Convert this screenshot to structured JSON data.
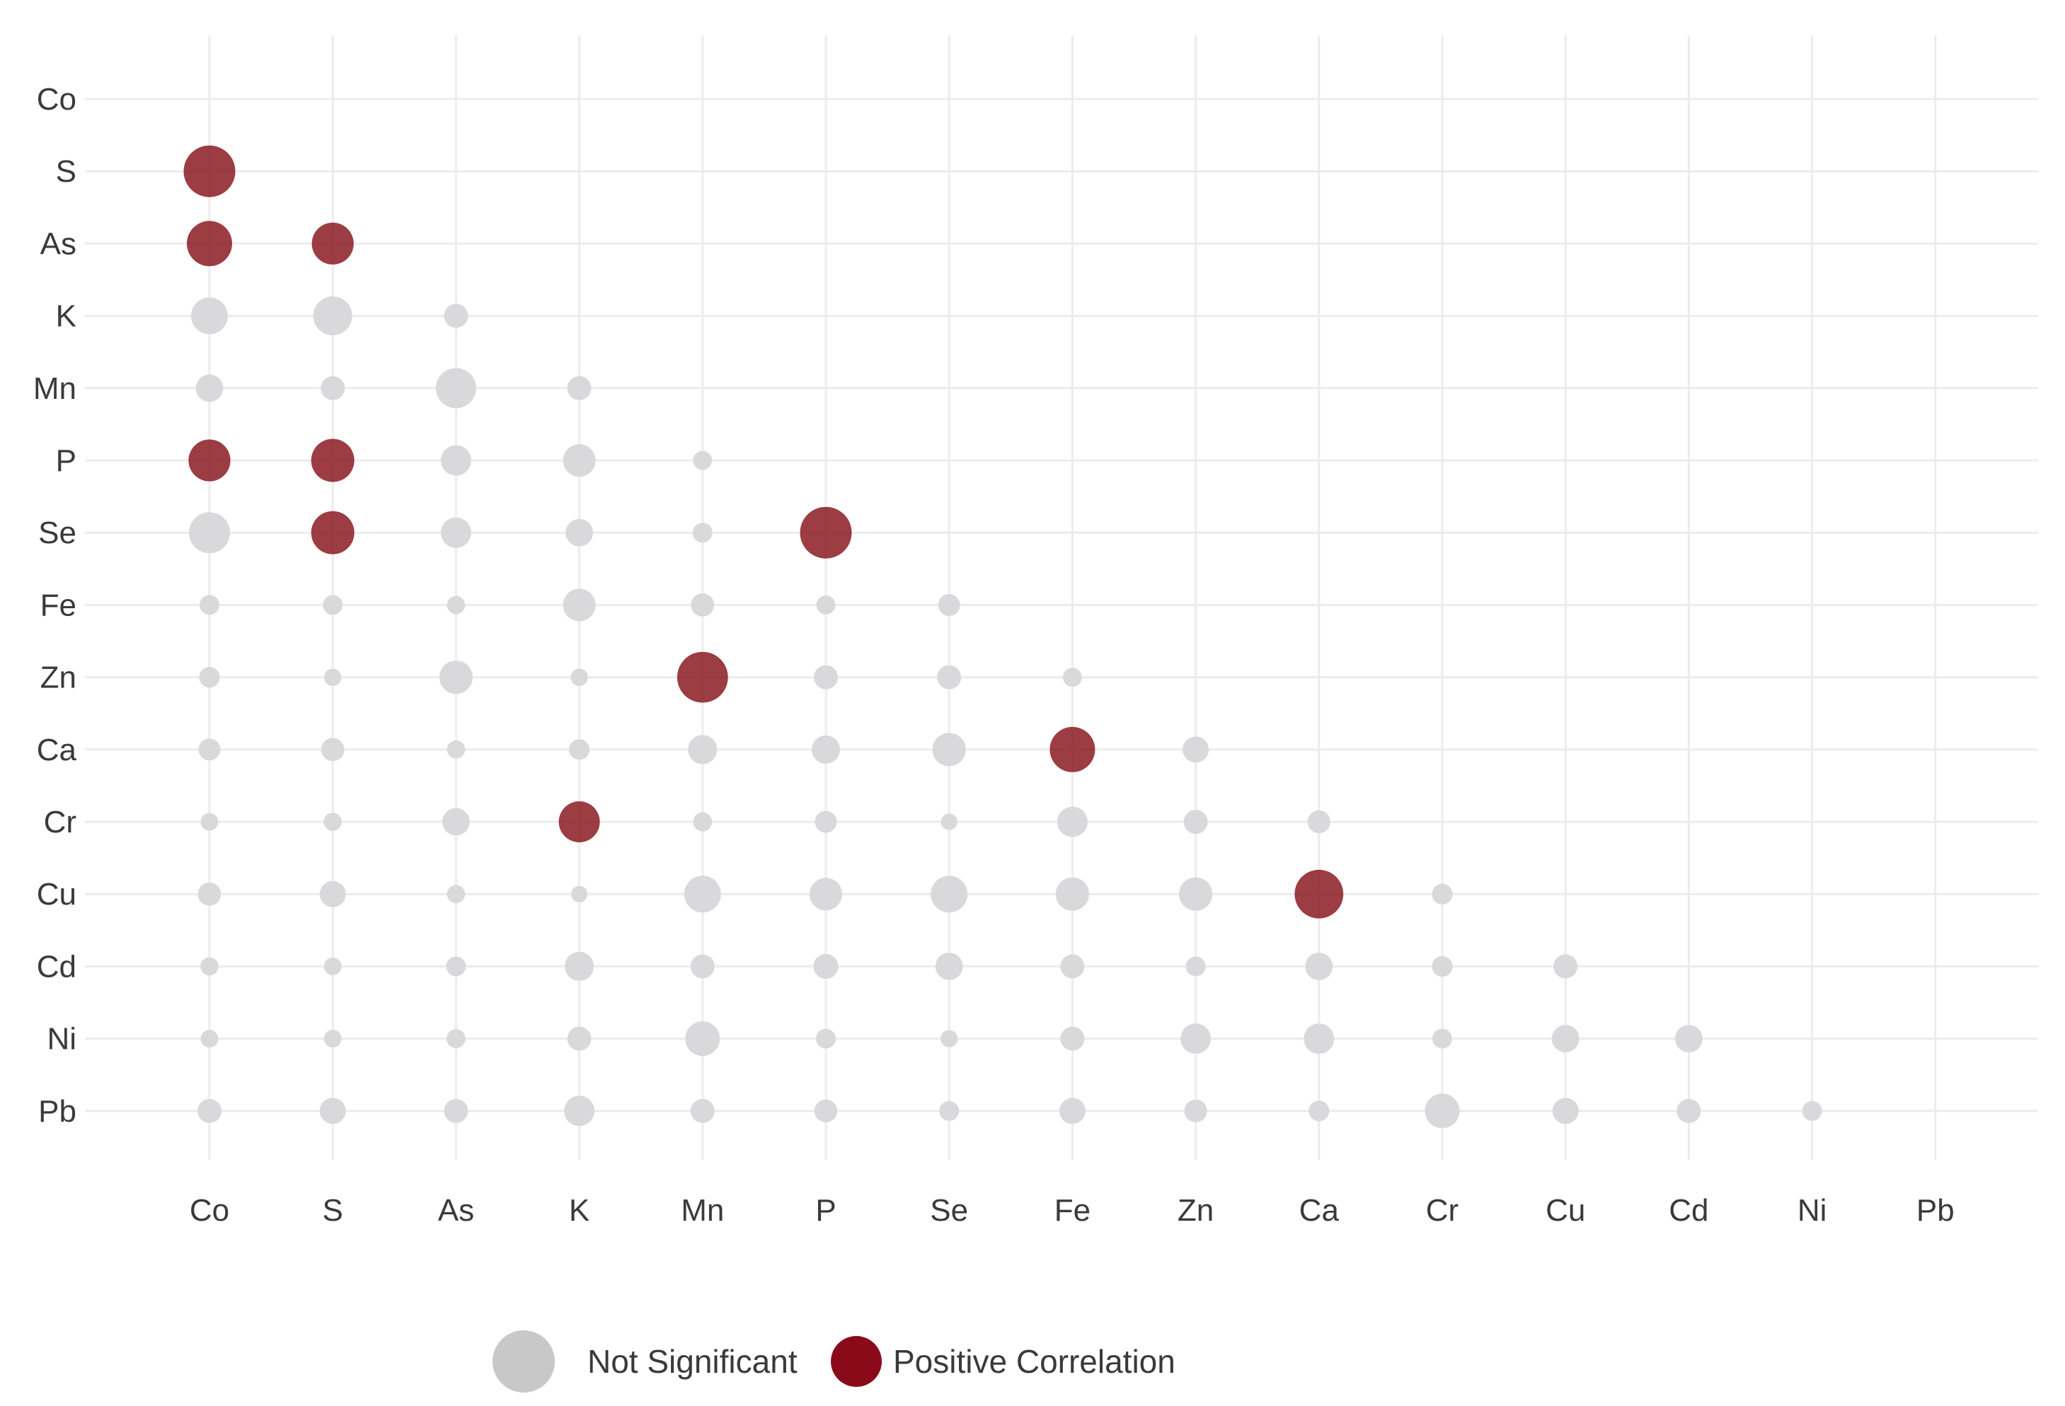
{
  "chart_data": {
    "type": "scatter",
    "title": "",
    "xlabel": "",
    "ylabel": "",
    "grid": true,
    "legend_position": "bottom",
    "x_categories": [
      "Co",
      "S",
      "As",
      "K",
      "Mn",
      "P",
      "Se",
      "Fe",
      "Zn",
      "Ca",
      "Cr",
      "Cu",
      "Cd",
      "Ni",
      "Pb"
    ],
    "y_categories": [
      "Co",
      "S",
      "As",
      "K",
      "Mn",
      "P",
      "Se",
      "Fe",
      "Zn",
      "Ca",
      "Cr",
      "Cu",
      "Cd",
      "Ni",
      "Pb"
    ],
    "size_scale": [
      0,
      1
    ],
    "colors": {
      "not_significant": "#d9d9db",
      "positive": "#8b1a22",
      "grid": "#ececec"
    },
    "legend": [
      {
        "label": "Not Significant",
        "color": "#c8c8c8"
      },
      {
        "label": "Positive Correlation",
        "color": "#8b0a1a"
      }
    ],
    "points": [
      {
        "x": "Co",
        "y": "S",
        "size": 0.95,
        "sig": "positive"
      },
      {
        "x": "Co",
        "y": "As",
        "size": 0.8,
        "sig": "positive"
      },
      {
        "x": "S",
        "y": "As",
        "size": 0.72,
        "sig": "positive"
      },
      {
        "x": "Co",
        "y": "K",
        "size": 0.6,
        "sig": "ns"
      },
      {
        "x": "S",
        "y": "K",
        "size": 0.65,
        "sig": "ns"
      },
      {
        "x": "As",
        "y": "K",
        "size": 0.3,
        "sig": "ns"
      },
      {
        "x": "Co",
        "y": "Mn",
        "size": 0.38,
        "sig": "ns"
      },
      {
        "x": "S",
        "y": "Mn",
        "size": 0.3,
        "sig": "ns"
      },
      {
        "x": "As",
        "y": "Mn",
        "size": 0.68,
        "sig": "ns"
      },
      {
        "x": "K",
        "y": "Mn",
        "size": 0.3,
        "sig": "ns"
      },
      {
        "x": "Co",
        "y": "P",
        "size": 0.72,
        "sig": "positive"
      },
      {
        "x": "S",
        "y": "P",
        "size": 0.75,
        "sig": "positive"
      },
      {
        "x": "As",
        "y": "P",
        "size": 0.45,
        "sig": "ns"
      },
      {
        "x": "K",
        "y": "P",
        "size": 0.5,
        "sig": "ns"
      },
      {
        "x": "Mn",
        "y": "P",
        "size": 0.18,
        "sig": "ns"
      },
      {
        "x": "Co",
        "y": "Se",
        "size": 0.7,
        "sig": "ns"
      },
      {
        "x": "S",
        "y": "Se",
        "size": 0.75,
        "sig": "positive"
      },
      {
        "x": "As",
        "y": "Se",
        "size": 0.45,
        "sig": "ns"
      },
      {
        "x": "K",
        "y": "Se",
        "size": 0.38,
        "sig": "ns"
      },
      {
        "x": "Mn",
        "y": "Se",
        "size": 0.2,
        "sig": "ns"
      },
      {
        "x": "P",
        "y": "Se",
        "size": 0.95,
        "sig": "positive"
      },
      {
        "x": "Co",
        "y": "Fe",
        "size": 0.2,
        "sig": "ns"
      },
      {
        "x": "S",
        "y": "Fe",
        "size": 0.2,
        "sig": "ns"
      },
      {
        "x": "As",
        "y": "Fe",
        "size": 0.16,
        "sig": "ns"
      },
      {
        "x": "K",
        "y": "Fe",
        "size": 0.5,
        "sig": "ns"
      },
      {
        "x": "Mn",
        "y": "Fe",
        "size": 0.28,
        "sig": "ns"
      },
      {
        "x": "P",
        "y": "Fe",
        "size": 0.18,
        "sig": "ns"
      },
      {
        "x": "Se",
        "y": "Fe",
        "size": 0.25,
        "sig": "ns"
      },
      {
        "x": "Co",
        "y": "Zn",
        "size": 0.22,
        "sig": "ns"
      },
      {
        "x": "S",
        "y": "Zn",
        "size": 0.14,
        "sig": "ns"
      },
      {
        "x": "As",
        "y": "Zn",
        "size": 0.52,
        "sig": "ns"
      },
      {
        "x": "K",
        "y": "Zn",
        "size": 0.14,
        "sig": "ns"
      },
      {
        "x": "Mn",
        "y": "Zn",
        "size": 0.93,
        "sig": "positive"
      },
      {
        "x": "P",
        "y": "Zn",
        "size": 0.3,
        "sig": "ns"
      },
      {
        "x": "Se",
        "y": "Zn",
        "size": 0.3,
        "sig": "ns"
      },
      {
        "x": "Fe",
        "y": "Zn",
        "size": 0.18,
        "sig": "ns"
      },
      {
        "x": "Co",
        "y": "Ca",
        "size": 0.25,
        "sig": "ns"
      },
      {
        "x": "S",
        "y": "Ca",
        "size": 0.28,
        "sig": "ns"
      },
      {
        "x": "As",
        "y": "Ca",
        "size": 0.16,
        "sig": "ns"
      },
      {
        "x": "K",
        "y": "Ca",
        "size": 0.22,
        "sig": "ns"
      },
      {
        "x": "Mn",
        "y": "Ca",
        "size": 0.42,
        "sig": "ns"
      },
      {
        "x": "P",
        "y": "Ca",
        "size": 0.4,
        "sig": "ns"
      },
      {
        "x": "Se",
        "y": "Ca",
        "size": 0.52,
        "sig": "ns"
      },
      {
        "x": "Fe",
        "y": "Ca",
        "size": 0.8,
        "sig": "positive"
      },
      {
        "x": "Zn",
        "y": "Ca",
        "size": 0.35,
        "sig": "ns"
      },
      {
        "x": "Co",
        "y": "Cr",
        "size": 0.15,
        "sig": "ns"
      },
      {
        "x": "S",
        "y": "Cr",
        "size": 0.16,
        "sig": "ns"
      },
      {
        "x": "As",
        "y": "Cr",
        "size": 0.38,
        "sig": "ns"
      },
      {
        "x": "K",
        "y": "Cr",
        "size": 0.7,
        "sig": "positive"
      },
      {
        "x": "Mn",
        "y": "Cr",
        "size": 0.18,
        "sig": "ns"
      },
      {
        "x": "P",
        "y": "Cr",
        "size": 0.25,
        "sig": "ns"
      },
      {
        "x": "Se",
        "y": "Cr",
        "size": 0.12,
        "sig": "ns"
      },
      {
        "x": "Fe",
        "y": "Cr",
        "size": 0.45,
        "sig": "ns"
      },
      {
        "x": "Zn",
        "y": "Cr",
        "size": 0.3,
        "sig": "ns"
      },
      {
        "x": "Ca",
        "y": "Cr",
        "size": 0.27,
        "sig": "ns"
      },
      {
        "x": "Co",
        "y": "Cu",
        "size": 0.28,
        "sig": "ns"
      },
      {
        "x": "S",
        "y": "Cu",
        "size": 0.35,
        "sig": "ns"
      },
      {
        "x": "As",
        "y": "Cu",
        "size": 0.16,
        "sig": "ns"
      },
      {
        "x": "K",
        "y": "Cu",
        "size": 0.12,
        "sig": "ns"
      },
      {
        "x": "Mn",
        "y": "Cu",
        "size": 0.6,
        "sig": "ns"
      },
      {
        "x": "P",
        "y": "Cu",
        "size": 0.5,
        "sig": "ns"
      },
      {
        "x": "Se",
        "y": "Cu",
        "size": 0.6,
        "sig": "ns"
      },
      {
        "x": "Fe",
        "y": "Cu",
        "size": 0.52,
        "sig": "ns"
      },
      {
        "x": "Zn",
        "y": "Cu",
        "size": 0.52,
        "sig": "ns"
      },
      {
        "x": "Ca",
        "y": "Cu",
        "size": 0.88,
        "sig": "positive"
      },
      {
        "x": "Cr",
        "y": "Cu",
        "size": 0.22,
        "sig": "ns"
      },
      {
        "x": "Co",
        "y": "Cd",
        "size": 0.16,
        "sig": "ns"
      },
      {
        "x": "S",
        "y": "Cd",
        "size": 0.15,
        "sig": "ns"
      },
      {
        "x": "As",
        "y": "Cd",
        "size": 0.2,
        "sig": "ns"
      },
      {
        "x": "K",
        "y": "Cd",
        "size": 0.42,
        "sig": "ns"
      },
      {
        "x": "Mn",
        "y": "Cd",
        "size": 0.3,
        "sig": "ns"
      },
      {
        "x": "P",
        "y": "Cd",
        "size": 0.32,
        "sig": "ns"
      },
      {
        "x": "Se",
        "y": "Cd",
        "size": 0.38,
        "sig": "ns"
      },
      {
        "x": "Fe",
        "y": "Cd",
        "size": 0.3,
        "sig": "ns"
      },
      {
        "x": "Zn",
        "y": "Cd",
        "size": 0.2,
        "sig": "ns"
      },
      {
        "x": "Ca",
        "y": "Cd",
        "size": 0.38,
        "sig": "ns"
      },
      {
        "x": "Cr",
        "y": "Cd",
        "size": 0.22,
        "sig": "ns"
      },
      {
        "x": "Cu",
        "y": "Cd",
        "size": 0.3,
        "sig": "ns"
      },
      {
        "x": "Co",
        "y": "Ni",
        "size": 0.15,
        "sig": "ns"
      },
      {
        "x": "S",
        "y": "Ni",
        "size": 0.15,
        "sig": "ns"
      },
      {
        "x": "As",
        "y": "Ni",
        "size": 0.18,
        "sig": "ns"
      },
      {
        "x": "K",
        "y": "Ni",
        "size": 0.3,
        "sig": "ns"
      },
      {
        "x": "Mn",
        "y": "Ni",
        "size": 0.55,
        "sig": "ns"
      },
      {
        "x": "P",
        "y": "Ni",
        "size": 0.2,
        "sig": "ns"
      },
      {
        "x": "Se",
        "y": "Ni",
        "size": 0.14,
        "sig": "ns"
      },
      {
        "x": "Fe",
        "y": "Ni",
        "size": 0.3,
        "sig": "ns"
      },
      {
        "x": "Zn",
        "y": "Ni",
        "size": 0.45,
        "sig": "ns"
      },
      {
        "x": "Ca",
        "y": "Ni",
        "size": 0.45,
        "sig": "ns"
      },
      {
        "x": "Cr",
        "y": "Ni",
        "size": 0.2,
        "sig": "ns"
      },
      {
        "x": "Cu",
        "y": "Ni",
        "size": 0.38,
        "sig": "ns"
      },
      {
        "x": "Cd",
        "y": "Ni",
        "size": 0.38,
        "sig": "ns"
      },
      {
        "x": "Co",
        "y": "Pb",
        "size": 0.3,
        "sig": "ns"
      },
      {
        "x": "S",
        "y": "Pb",
        "size": 0.35,
        "sig": "ns"
      },
      {
        "x": "As",
        "y": "Pb",
        "size": 0.3,
        "sig": "ns"
      },
      {
        "x": "K",
        "y": "Pb",
        "size": 0.45,
        "sig": "ns"
      },
      {
        "x": "Mn",
        "y": "Pb",
        "size": 0.3,
        "sig": "ns"
      },
      {
        "x": "P",
        "y": "Pb",
        "size": 0.27,
        "sig": "ns"
      },
      {
        "x": "Se",
        "y": "Pb",
        "size": 0.2,
        "sig": "ns"
      },
      {
        "x": "Fe",
        "y": "Pb",
        "size": 0.35,
        "sig": "ns"
      },
      {
        "x": "Zn",
        "y": "Pb",
        "size": 0.27,
        "sig": "ns"
      },
      {
        "x": "Ca",
        "y": "Pb",
        "size": 0.22,
        "sig": "ns"
      },
      {
        "x": "Cr",
        "y": "Pb",
        "size": 0.55,
        "sig": "ns"
      },
      {
        "x": "Cu",
        "y": "Pb",
        "size": 0.35,
        "sig": "ns"
      },
      {
        "x": "Cd",
        "y": "Pb",
        "size": 0.3,
        "sig": "ns"
      },
      {
        "x": "Ni",
        "y": "Pb",
        "size": 0.2,
        "sig": "ns"
      }
    ]
  }
}
